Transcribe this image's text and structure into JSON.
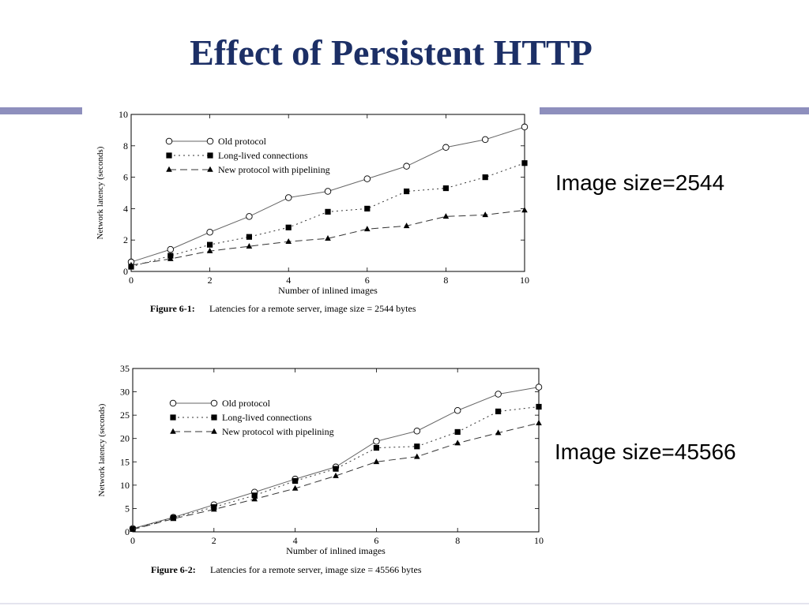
{
  "slide": {
    "title": "Effect of Persistent HTTP",
    "label_1": "Image size=2544",
    "label_2": "Image size=45566"
  },
  "chart_data": [
    {
      "type": "line",
      "figure_number": "Figure 6-1:",
      "caption": "Latencies for a remote server, image size = 2544 bytes",
      "xlabel": "Number of inlined images",
      "ylabel": "Network latency (seconds)",
      "xlim": [
        0,
        10
      ],
      "ylim": [
        0,
        10
      ],
      "xticks": [
        0,
        2,
        4,
        6,
        8,
        10
      ],
      "yticks": [
        0,
        2,
        4,
        6,
        8,
        10
      ],
      "legend_position": "top-left",
      "grid": false,
      "x": [
        0,
        1,
        2,
        3,
        4,
        5,
        6,
        7,
        8,
        9,
        10
      ],
      "series": [
        {
          "name": "Old protocol",
          "style": "solid",
          "marker": "circle",
          "values": [
            0.6,
            1.4,
            2.5,
            3.5,
            4.7,
            5.1,
            5.9,
            6.7,
            7.9,
            8.4,
            9.2
          ]
        },
        {
          "name": "Long-lived connections",
          "style": "dotted",
          "marker": "square",
          "values": [
            0.3,
            1.0,
            1.7,
            2.2,
            2.8,
            3.8,
            4.0,
            5.1,
            5.3,
            6.0,
            6.9
          ]
        },
        {
          "name": "New protocol with pipelining",
          "style": "dashed",
          "marker": "triangle",
          "values": [
            0.4,
            0.8,
            1.3,
            1.6,
            1.9,
            2.1,
            2.7,
            2.9,
            3.5,
            3.6,
            3.9
          ]
        }
      ]
    },
    {
      "type": "line",
      "figure_number": "Figure 6-2:",
      "caption": "Latencies for a remote server, image size = 45566 bytes",
      "xlabel": "Number of inlined images",
      "ylabel": "Network latency (seconds)",
      "xlim": [
        0,
        10
      ],
      "ylim": [
        0,
        35
      ],
      "xticks": [
        0,
        2,
        4,
        6,
        8,
        10
      ],
      "yticks": [
        0,
        5,
        10,
        15,
        20,
        25,
        30,
        35
      ],
      "legend_position": "top-left",
      "grid": false,
      "x": [
        0,
        1,
        2,
        3,
        4,
        5,
        6,
        7,
        8,
        9,
        10
      ],
      "series": [
        {
          "name": "Old protocol",
          "style": "solid",
          "marker": "circle",
          "values": [
            0.7,
            3.1,
            5.8,
            8.5,
            11.3,
            13.9,
            19.4,
            21.6,
            26.0,
            29.5,
            31.0
          ]
        },
        {
          "name": "Long-lived connections",
          "style": "dotted",
          "marker": "square",
          "values": [
            0.6,
            3.0,
            5.3,
            7.8,
            10.9,
            13.5,
            18.0,
            18.3,
            21.4,
            25.8,
            26.8
          ]
        },
        {
          "name": "New protocol with pipelining",
          "style": "dashed",
          "marker": "triangle",
          "values": [
            0.5,
            2.8,
            4.8,
            7.0,
            9.3,
            12.0,
            15.0,
            16.1,
            19.0,
            21.2,
            23.3
          ]
        }
      ]
    }
  ]
}
